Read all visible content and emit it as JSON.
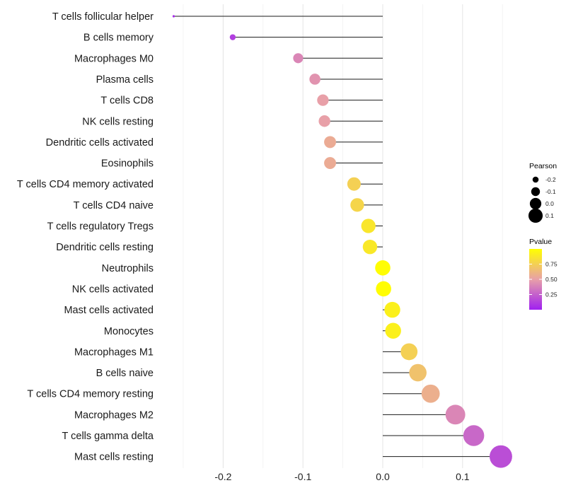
{
  "chart_data": {
    "type": "lollipop",
    "title": "",
    "xlabel": "",
    "ylabel": "",
    "xlim": [
      -0.265,
      0.15
    ],
    "x_ticks": [
      -0.2,
      -0.1,
      0.0,
      0.1
    ],
    "x_tick_labels": [
      "-0.2",
      "-0.1",
      "0.0",
      "0.1"
    ],
    "grid": true,
    "categories": [
      "T cells follicular helper",
      "B cells memory",
      "Macrophages M0",
      "Plasma cells",
      "T cells CD8",
      "NK cells resting",
      "Dendritic cells activated",
      "Eosinophils",
      "T cells CD4 memory activated",
      "T cells CD4 naive",
      "T cells regulatory  Tregs ",
      "Dendritic cells resting",
      "Neutrophils",
      "NK cells activated",
      "Mast cells activated",
      "Monocytes",
      "Macrophages M1",
      "B cells naive",
      "T cells CD4 memory resting",
      "Macrophages M2",
      "T cells gamma delta",
      "Mast cells resting"
    ],
    "pearson": [
      -0.262,
      -0.188,
      -0.106,
      -0.085,
      -0.075,
      -0.073,
      -0.066,
      -0.066,
      -0.036,
      -0.032,
      -0.018,
      -0.016,
      0.0,
      0.001,
      0.012,
      0.013,
      0.033,
      0.044,
      0.06,
      0.091,
      0.114,
      0.148
    ],
    "pvalue": [
      0.05,
      0.12,
      0.4,
      0.45,
      0.5,
      0.5,
      0.56,
      0.56,
      0.75,
      0.78,
      0.87,
      0.88,
      0.99,
      0.99,
      0.92,
      0.92,
      0.75,
      0.68,
      0.58,
      0.4,
      0.28,
      0.18
    ],
    "legend_size": {
      "title": "Pearson",
      "values": [
        -0.2,
        -0.1,
        0.0,
        0.1
      ],
      "labels": [
        "-0.2",
        "-0.1",
        "0.0",
        "0.1"
      ]
    },
    "legend_color": {
      "title": "Pvalue",
      "breaks": [
        0.25,
        0.5,
        0.75
      ],
      "labels": [
        "0.25",
        "0.50",
        "0.75"
      ],
      "range": [
        0.0,
        1.0
      ],
      "low_color": "#a020f0",
      "mid_color": "#e8a0a8",
      "high_color": "#ffff00"
    },
    "legend_position": "right"
  }
}
